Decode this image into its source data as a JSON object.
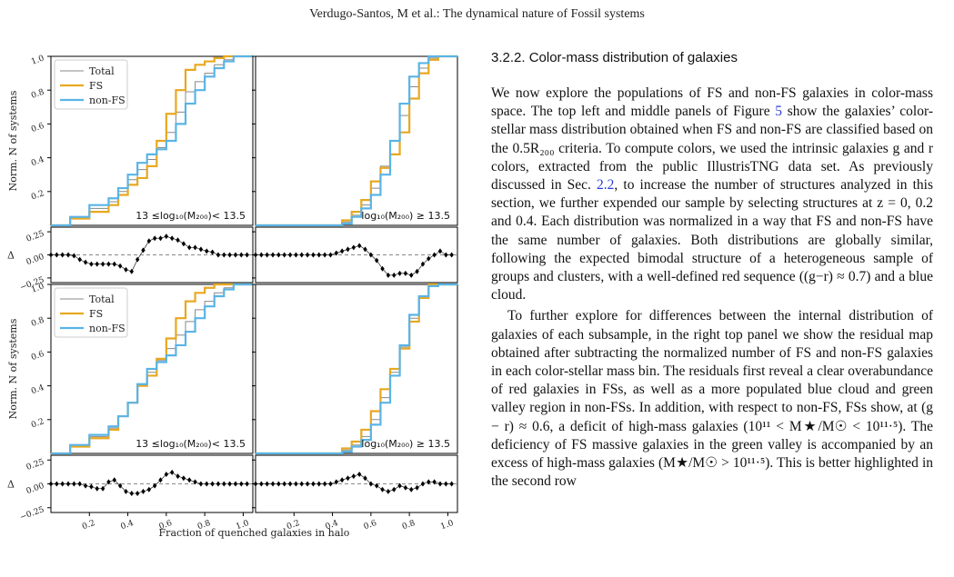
{
  "header": {
    "running_head": "Verdugo-Santos, M et al.: The dynamical nature of Fossil systems"
  },
  "section": {
    "heading": "3.2.2. Color-mass distribution of galaxies"
  },
  "article": {
    "paragraphs": [
      "We now explore the populations of FS and non-FS galaxies in color-mass space. The top left and middle panels of Figure 5 show the galaxies’ color-stellar mass distribution obtained when FS and non-FS are classified based on the 0.5R₂₀₀ criteria. To compute colors, we used the intrinsic galaxies g and r colors, extracted from the public IllustrisTNG data set. As previously discussed in Sec. 2.2, to increase the number of structures analyzed in this section, we further expended our sample by selecting structures at z = 0, 0.2 and 0.4. Each distribution was normalized in a way that FS and non-FS have the same number of galaxies. Both distributions are globally similar, following the expected bimodal structure of a heterogeneous sample of groups and clusters, with a well-defined red sequence ((g−r) ≈ 0.7) and a blue cloud.",
      "To further explore for differences between the internal distribution of galaxies of each subsample, in the right top panel we show the residual map obtained after subtracting the normalized number of FS and non-FS galaxies in each color-stellar mass bin. The residuals first reveal a clear overabundance of red galaxies in FSs, as well as a more populated blue cloud and green valley region in non-FSs. In addition, with respect to non-FS, FSs show, at (g − r) ≈ 0.6, a deficit of high-mass galaxies (10¹¹ < M★/M☉ < 10¹¹·⁵). The deficiency of FS massive galaxies in the green valley is accompanied by an excess of high-mass galaxies (M★/M☉ > 10¹¹·⁵). This is better highlighted in the second row"
    ]
  },
  "colors": {
    "total": "#888888",
    "fs": "#e8a820",
    "non_fs": "#5ab4e6",
    "residual": "#000000"
  },
  "chart_data": {
    "type": "line",
    "description_axes": {
      "xlabel": "Fraction of quenched galaxies in halo",
      "ylabel": "Norm. N of systems",
      "residual_ylabel": "Δ",
      "xlim": [
        0.0,
        1.05
      ],
      "ylim": [
        0.0,
        1.0
      ],
      "residual_ylim": [
        -0.3,
        0.3
      ],
      "xticks": [
        "0.2",
        "0.4",
        "0.6",
        "0.8",
        "1.0"
      ],
      "yticks": [
        "0.2",
        "0.4",
        "0.6",
        "0.8",
        "1.0"
      ],
      "residual_yticks": [
        "−0.25",
        "0.00",
        "0.25"
      ]
    },
    "legend": [
      "Total",
      "FS",
      "non-FS"
    ],
    "panels": [
      {
        "label": "13 ≤log₁₀(M₂₀₀)< 13.5",
        "legend_shown": true,
        "series": [
          {
            "name": "Total",
            "x": [
              0.0,
              0.1,
              0.2,
              0.3,
              0.35,
              0.4,
              0.45,
              0.5,
              0.55,
              0.6,
              0.65,
              0.7,
              0.75,
              0.8,
              0.85,
              0.9,
              0.95,
              1.0
            ],
            "y": [
              0.0,
              0.05,
              0.1,
              0.14,
              0.2,
              0.27,
              0.33,
              0.39,
              0.46,
              0.55,
              0.67,
              0.79,
              0.85,
              0.9,
              0.95,
              0.98,
              1.0,
              1.0
            ]
          },
          {
            "name": "FS",
            "x": [
              0.0,
              0.1,
              0.2,
              0.3,
              0.35,
              0.4,
              0.45,
              0.5,
              0.55,
              0.6,
              0.65,
              0.7,
              0.75,
              0.8,
              0.85,
              0.9,
              0.95,
              1.0
            ],
            "y": [
              0.0,
              0.04,
              0.08,
              0.12,
              0.18,
              0.24,
              0.28,
              0.35,
              0.5,
              0.66,
              0.8,
              0.92,
              0.95,
              0.97,
              0.99,
              1.0,
              1.0,
              1.0
            ]
          },
          {
            "name": "non-FS",
            "x": [
              0.0,
              0.1,
              0.2,
              0.3,
              0.35,
              0.4,
              0.45,
              0.5,
              0.55,
              0.6,
              0.65,
              0.7,
              0.75,
              0.8,
              0.85,
              0.9,
              0.95,
              1.0
            ],
            "y": [
              0.0,
              0.05,
              0.12,
              0.16,
              0.22,
              0.3,
              0.37,
              0.42,
              0.45,
              0.5,
              0.6,
              0.72,
              0.8,
              0.88,
              0.93,
              0.97,
              1.0,
              1.0
            ]
          }
        ],
        "residual": {
          "x": [
            0.0,
            0.03,
            0.06,
            0.09,
            0.12,
            0.15,
            0.18,
            0.21,
            0.24,
            0.27,
            0.3,
            0.33,
            0.36,
            0.39,
            0.42,
            0.45,
            0.48,
            0.51,
            0.54,
            0.57,
            0.6,
            0.63,
            0.66,
            0.69,
            0.72,
            0.75,
            0.78,
            0.81,
            0.84,
            0.87,
            0.9,
            0.93,
            0.96,
            0.99,
            1.02
          ],
          "y": [
            0.0,
            0.0,
            0.0,
            0.0,
            -0.01,
            -0.05,
            -0.08,
            -0.1,
            -0.1,
            -0.1,
            -0.1,
            -0.1,
            -0.12,
            -0.16,
            -0.18,
            -0.05,
            0.05,
            0.15,
            0.18,
            0.18,
            0.2,
            0.18,
            0.16,
            0.12,
            0.08,
            0.08,
            0.06,
            0.04,
            0.03,
            0.0,
            0.0,
            0.0,
            0.0,
            0.0,
            0.0
          ]
        }
      },
      {
        "label": "log₁₀(M₂₀₀) ≥ 13.5",
        "legend_shown": false,
        "series": [
          {
            "name": "Total",
            "x": [
              0.0,
              0.1,
              0.2,
              0.3,
              0.35,
              0.4,
              0.45,
              0.5,
              0.55,
              0.6,
              0.65,
              0.7,
              0.75,
              0.8,
              0.85,
              0.9,
              0.95,
              1.0
            ],
            "y": [
              0.0,
              0.0,
              0.0,
              0.0,
              0.0,
              0.0,
              0.02,
              0.06,
              0.12,
              0.22,
              0.35,
              0.5,
              0.65,
              0.82,
              0.93,
              0.99,
              1.0,
              1.0
            ]
          },
          {
            "name": "FS",
            "x": [
              0.0,
              0.1,
              0.2,
              0.3,
              0.35,
              0.4,
              0.45,
              0.5,
              0.55,
              0.6,
              0.65,
              0.7,
              0.75,
              0.8,
              0.85,
              0.9,
              0.95,
              1.0
            ],
            "y": [
              0.0,
              0.0,
              0.0,
              0.0,
              0.0,
              0.0,
              0.03,
              0.08,
              0.15,
              0.26,
              0.34,
              0.42,
              0.55,
              0.75,
              0.9,
              0.98,
              1.0,
              1.0
            ]
          },
          {
            "name": "non-FS",
            "x": [
              0.0,
              0.1,
              0.2,
              0.3,
              0.35,
              0.4,
              0.45,
              0.5,
              0.55,
              0.6,
              0.65,
              0.7,
              0.75,
              0.8,
              0.85,
              0.9,
              0.95,
              1.0
            ],
            "y": [
              0.0,
              0.0,
              0.0,
              0.0,
              0.0,
              0.0,
              0.01,
              0.05,
              0.1,
              0.18,
              0.3,
              0.5,
              0.72,
              0.88,
              0.96,
              1.0,
              1.0,
              1.0
            ]
          }
        ],
        "residual": {
          "x": [
            0.0,
            0.03,
            0.06,
            0.09,
            0.12,
            0.15,
            0.18,
            0.21,
            0.24,
            0.27,
            0.3,
            0.33,
            0.36,
            0.39,
            0.42,
            0.45,
            0.48,
            0.51,
            0.54,
            0.57,
            0.6,
            0.63,
            0.66,
            0.69,
            0.72,
            0.75,
            0.78,
            0.81,
            0.84,
            0.87,
            0.9,
            0.93,
            0.96,
            0.99,
            1.02
          ],
          "y": [
            0.0,
            0.0,
            0.0,
            0.0,
            0.0,
            0.0,
            0.0,
            0.0,
            0.0,
            0.0,
            0.0,
            0.0,
            0.0,
            0.0,
            0.02,
            0.04,
            0.06,
            0.08,
            0.1,
            0.06,
            0.0,
            -0.06,
            -0.15,
            -0.22,
            -0.22,
            -0.2,
            -0.2,
            -0.22,
            -0.18,
            -0.1,
            -0.04,
            0.0,
            0.04,
            0.0,
            0.0
          ]
        }
      },
      {
        "label": "13 ≤log₁₀(M₂₀₀)< 13.5",
        "legend_shown": true,
        "series": [
          {
            "name": "Total",
            "x": [
              0.0,
              0.1,
              0.2,
              0.3,
              0.35,
              0.4,
              0.45,
              0.5,
              0.55,
              0.6,
              0.65,
              0.7,
              0.75,
              0.8,
              0.85,
              0.9,
              0.95,
              1.0
            ],
            "y": [
              0.0,
              0.05,
              0.1,
              0.15,
              0.22,
              0.3,
              0.4,
              0.48,
              0.55,
              0.62,
              0.7,
              0.78,
              0.85,
              0.9,
              0.95,
              0.98,
              1.0,
              1.0
            ]
          },
          {
            "name": "FS",
            "x": [
              0.0,
              0.1,
              0.2,
              0.3,
              0.35,
              0.4,
              0.45,
              0.5,
              0.55,
              0.6,
              0.65,
              0.7,
              0.75,
              0.8,
              0.85,
              0.9,
              0.95,
              1.0
            ],
            "y": [
              0.0,
              0.04,
              0.09,
              0.14,
              0.22,
              0.3,
              0.4,
              0.46,
              0.56,
              0.68,
              0.8,
              0.9,
              0.95,
              0.98,
              1.0,
              1.0,
              1.0,
              1.0
            ]
          },
          {
            "name": "non-FS",
            "x": [
              0.0,
              0.1,
              0.2,
              0.3,
              0.35,
              0.4,
              0.45,
              0.5,
              0.55,
              0.6,
              0.65,
              0.7,
              0.75,
              0.8,
              0.85,
              0.9,
              0.95,
              1.0
            ],
            "y": [
              0.0,
              0.05,
              0.11,
              0.16,
              0.22,
              0.3,
              0.41,
              0.5,
              0.54,
              0.58,
              0.64,
              0.72,
              0.8,
              0.87,
              0.93,
              0.97,
              1.0,
              1.0
            ]
          }
        ],
        "residual": {
          "x": [
            0.0,
            0.03,
            0.06,
            0.09,
            0.12,
            0.15,
            0.18,
            0.21,
            0.24,
            0.27,
            0.3,
            0.33,
            0.36,
            0.39,
            0.42,
            0.45,
            0.48,
            0.51,
            0.54,
            0.57,
            0.6,
            0.63,
            0.66,
            0.69,
            0.72,
            0.75,
            0.78,
            0.81,
            0.84,
            0.87,
            0.9,
            0.93,
            0.96,
            0.99,
            1.02
          ],
          "y": [
            0.0,
            0.0,
            0.0,
            0.0,
            0.0,
            0.0,
            -0.02,
            -0.03,
            -0.05,
            -0.05,
            0.02,
            0.04,
            -0.02,
            -0.08,
            -0.1,
            -0.1,
            -0.08,
            -0.06,
            -0.02,
            0.04,
            0.1,
            0.12,
            0.08,
            0.06,
            0.04,
            0.02,
            0.0,
            0.0,
            0.0,
            0.0,
            0.0,
            0.0,
            0.0,
            0.0,
            0.0
          ]
        }
      },
      {
        "label": "log₁₀(M₂₀₀) ≥ 13.5",
        "legend_shown": false,
        "series": [
          {
            "name": "Total",
            "x": [
              0.0,
              0.1,
              0.2,
              0.3,
              0.35,
              0.4,
              0.45,
              0.5,
              0.55,
              0.6,
              0.65,
              0.7,
              0.75,
              0.8,
              0.85,
              0.9,
              0.95,
              1.0
            ],
            "y": [
              0.0,
              0.0,
              0.0,
              0.0,
              0.0,
              0.0,
              0.02,
              0.05,
              0.1,
              0.2,
              0.33,
              0.48,
              0.63,
              0.8,
              0.92,
              0.99,
              1.0,
              1.0
            ]
          },
          {
            "name": "FS",
            "x": [
              0.0,
              0.1,
              0.2,
              0.3,
              0.35,
              0.4,
              0.45,
              0.5,
              0.55,
              0.6,
              0.65,
              0.7,
              0.75,
              0.8,
              0.85,
              0.9,
              0.95,
              1.0
            ],
            "y": [
              0.0,
              0.0,
              0.0,
              0.0,
              0.0,
              0.0,
              0.03,
              0.07,
              0.14,
              0.25,
              0.38,
              0.5,
              0.62,
              0.78,
              0.92,
              1.0,
              1.0,
              1.0
            ]
          },
          {
            "name": "non-FS",
            "x": [
              0.0,
              0.1,
              0.2,
              0.3,
              0.35,
              0.4,
              0.45,
              0.5,
              0.55,
              0.6,
              0.65,
              0.7,
              0.75,
              0.8,
              0.85,
              0.9,
              0.95,
              1.0
            ],
            "y": [
              0.0,
              0.0,
              0.0,
              0.0,
              0.0,
              0.0,
              0.01,
              0.04,
              0.08,
              0.17,
              0.3,
              0.46,
              0.64,
              0.82,
              0.93,
              0.99,
              1.0,
              1.0
            ]
          }
        ],
        "residual": {
          "x": [
            0.0,
            0.03,
            0.06,
            0.09,
            0.12,
            0.15,
            0.18,
            0.21,
            0.24,
            0.27,
            0.3,
            0.33,
            0.36,
            0.39,
            0.42,
            0.45,
            0.48,
            0.51,
            0.54,
            0.57,
            0.6,
            0.63,
            0.66,
            0.69,
            0.72,
            0.75,
            0.78,
            0.81,
            0.84,
            0.87,
            0.9,
            0.93,
            0.96,
            0.99,
            1.02
          ],
          "y": [
            0.0,
            0.0,
            0.0,
            0.0,
            0.0,
            0.0,
            0.0,
            0.0,
            0.0,
            0.0,
            0.0,
            0.0,
            0.0,
            0.0,
            0.02,
            0.04,
            0.06,
            0.08,
            0.1,
            0.06,
            0.0,
            -0.02,
            -0.06,
            -0.08,
            -0.06,
            -0.02,
            -0.04,
            -0.06,
            -0.04,
            0.0,
            0.02,
            0.02,
            0.0,
            0.0,
            0.0
          ]
        }
      }
    ]
  }
}
